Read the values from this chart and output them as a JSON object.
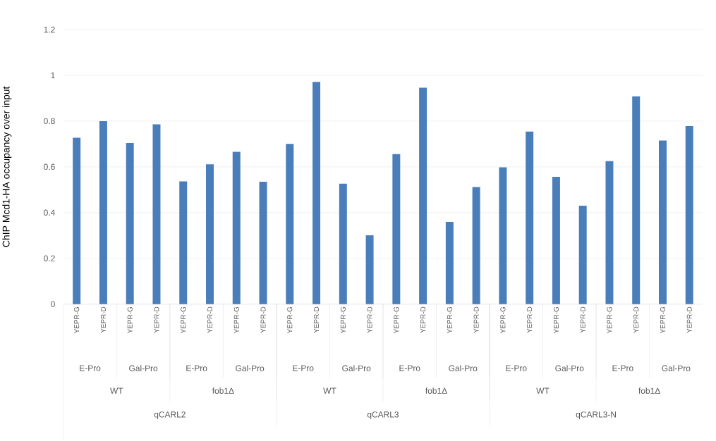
{
  "chart_data": {
    "type": "bar",
    "ylabel": "ChIP Mcd1-HA occupancy over input",
    "categories": [
      "YEPR-G",
      "YEPR-D",
      "YEPR-G",
      "YEPR-D",
      "YEPR-G",
      "YEPR-D",
      "YEPR-G",
      "YEPR-D",
      "YEPR-G",
      "YEPR-D",
      "YEPR-G",
      "YEPR-D",
      "YEPR-G",
      "YEPR-D",
      "YEPR-G",
      "YEPR-D",
      "YEPR-G",
      "YEPR-D",
      "YEPR-G",
      "YEPR-D",
      "YEPR-G",
      "YEPR-D",
      "YEPR-G",
      "YEPR-D"
    ],
    "values": [
      0.727,
      0.8,
      0.704,
      0.786,
      0.536,
      0.611,
      0.666,
      0.535,
      0.7,
      0.971,
      0.526,
      0.301,
      0.656,
      0.946,
      0.359,
      0.512,
      0.598,
      0.754,
      0.556,
      0.43,
      0.625,
      0.908,
      0.715,
      0.778
    ],
    "color": "#4a7ebb",
    "ylim": [
      0,
      1.2
    ],
    "yticks": [
      0,
      0.2,
      0.4,
      0.6,
      0.8,
      1,
      1.2
    ],
    "grid": "y",
    "annotations": [
      "E-Pro",
      "Gal-Pro",
      "E-Pro",
      "Gal-Pro",
      "E-Pro",
      "Gal-Pro",
      "E-Pro",
      "Gal-Pro",
      "E-Pro",
      "Gal-Pro",
      "E-Pro",
      "Gal-Pro",
      "WT",
      "fob1Δ",
      "WT",
      "fob1Δ",
      "WT",
      "fob1Δ",
      "qCARL2",
      "qCARL3",
      "qCARL3-N"
    ]
  }
}
